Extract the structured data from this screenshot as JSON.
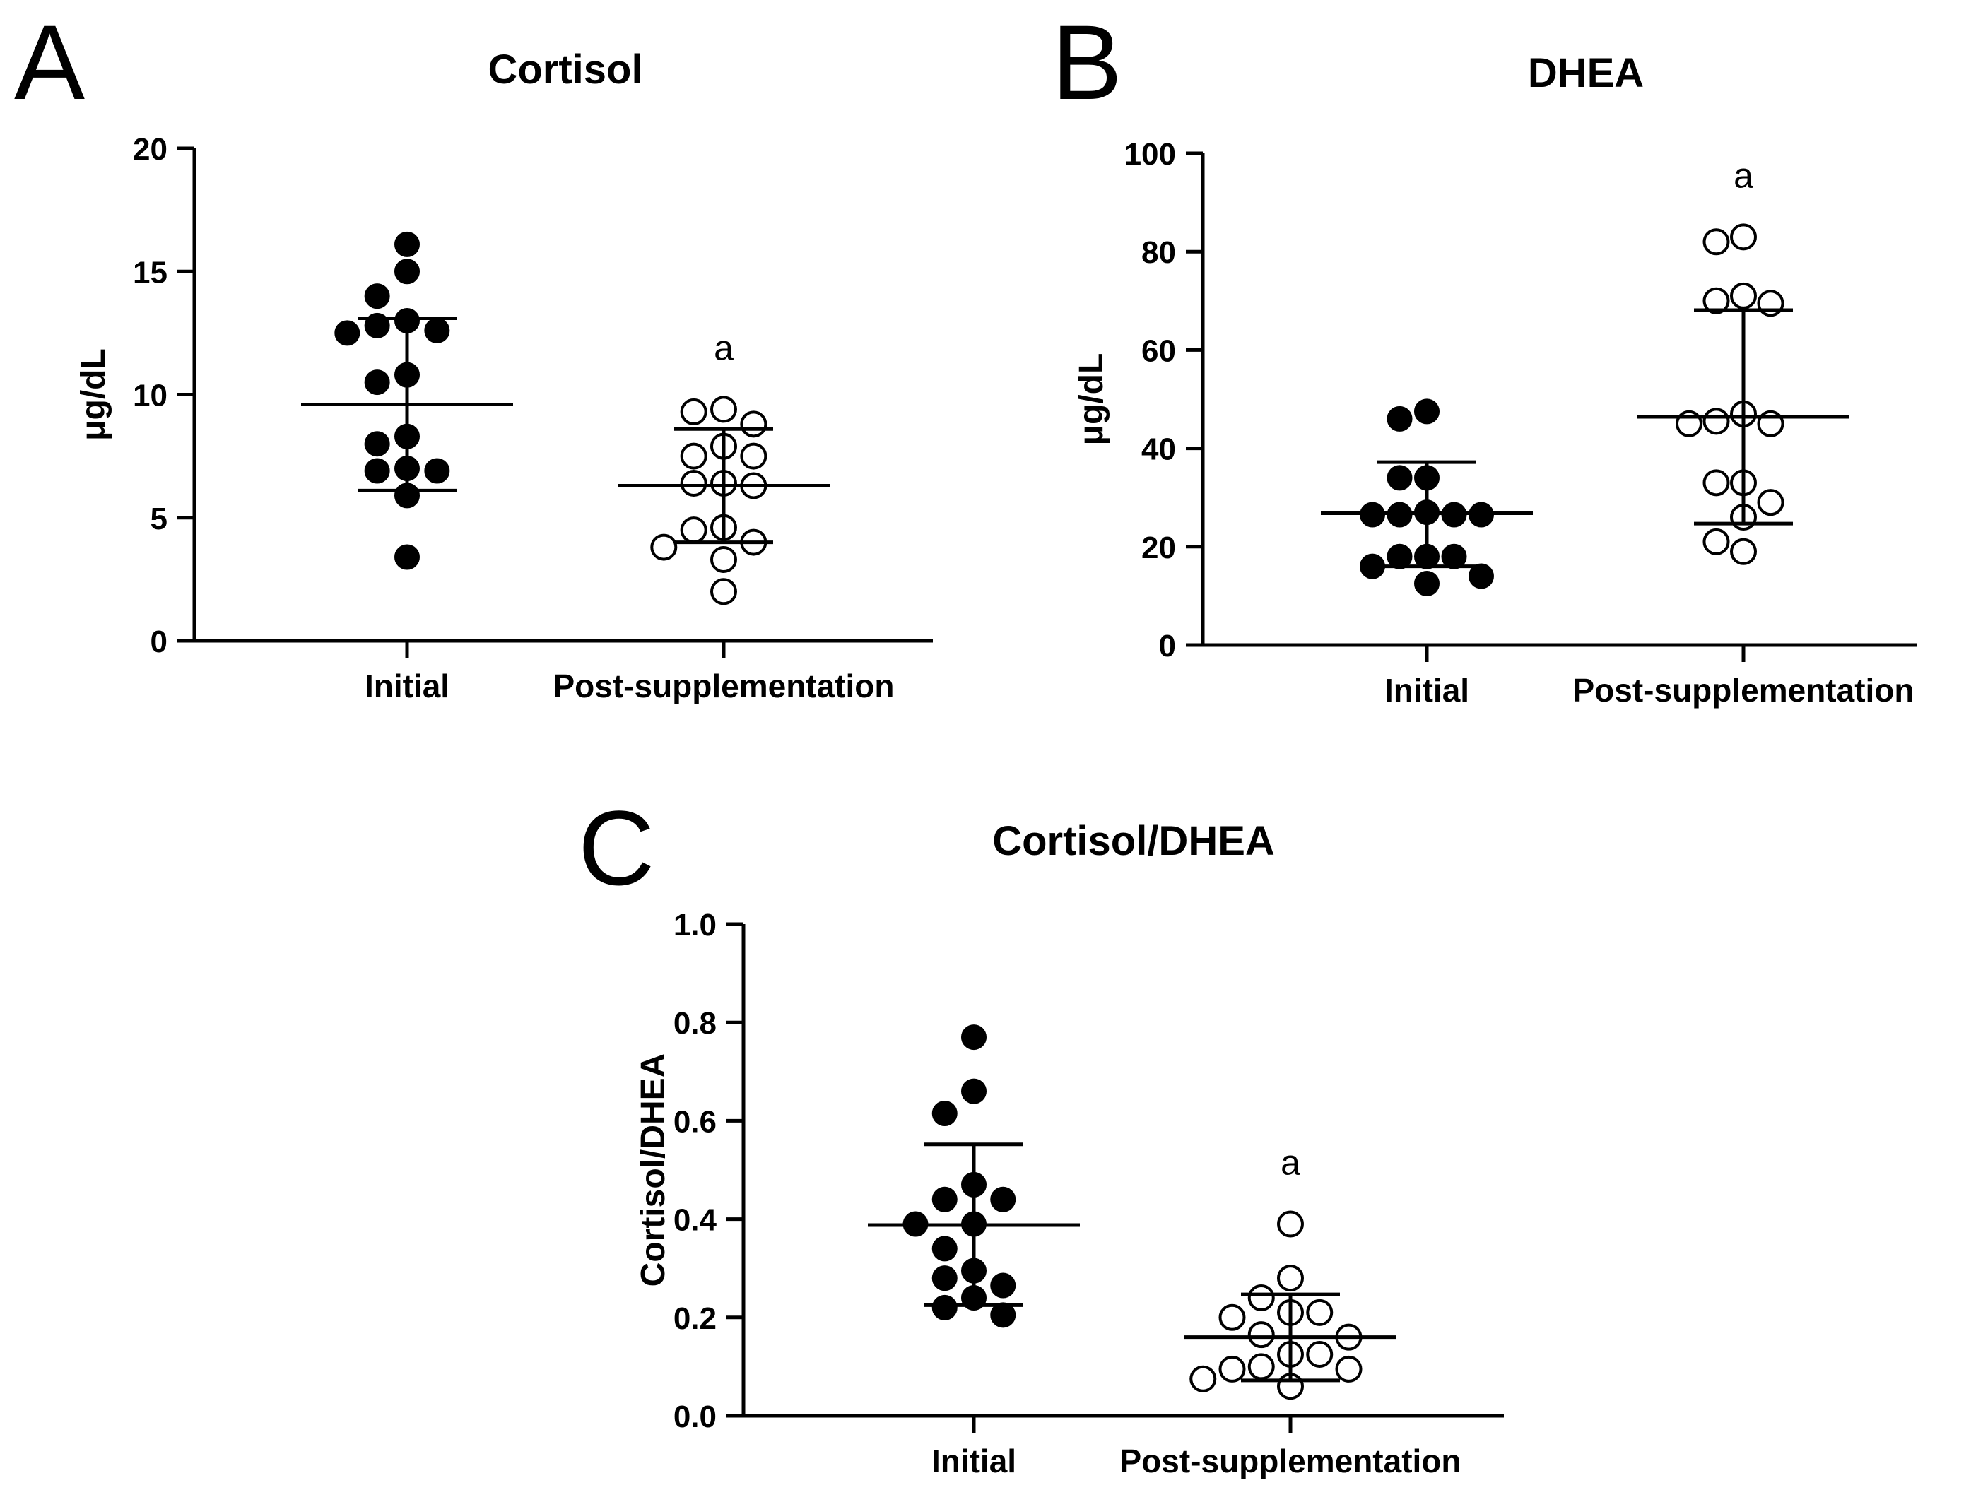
{
  "chart_data": [
    {
      "panel": "A",
      "type": "scatter",
      "title": "Cortisol",
      "ylabel": "μg/dL",
      "ylim": [
        0,
        20
      ],
      "yticks": [
        0,
        5,
        10,
        15,
        20
      ],
      "categories": [
        "Initial",
        "Post-supplementation"
      ],
      "groups": [
        {
          "category": "Initial",
          "marker": "filled",
          "points": [
            16.1,
            15.0,
            14.0,
            13.0,
            12.8,
            12.6,
            12.5,
            10.8,
            10.5,
            8.3,
            8.0,
            7.0,
            6.9,
            6.9,
            5.9,
            3.4
          ],
          "mean": 9.6,
          "sd_low": 6.1,
          "sd_high": 13.1
        },
        {
          "category": "Post-supplementation",
          "marker": "open",
          "points": [
            9.4,
            9.3,
            8.8,
            7.9,
            7.5,
            7.5,
            6.4,
            6.4,
            6.3,
            4.6,
            4.5,
            4.0,
            3.8,
            3.3,
            2.0
          ],
          "mean": 6.3,
          "sd_low": 4.0,
          "sd_high": 8.6,
          "annotation": "a"
        }
      ]
    },
    {
      "panel": "B",
      "type": "scatter",
      "title": "DHEA",
      "ylabel": "μg/dL",
      "ylim": [
        0,
        100
      ],
      "yticks": [
        0,
        20,
        40,
        60,
        80,
        100
      ],
      "categories": [
        "Initial",
        "Post-supplementation"
      ],
      "groups": [
        {
          "category": "Initial",
          "marker": "filled",
          "points": [
            47.5,
            46.0,
            34.0,
            34.0,
            27.0,
            26.5,
            26.5,
            26.5,
            26.5,
            18.0,
            18.0,
            18.0,
            16.0,
            14.0,
            12.5
          ],
          "mean": 26.8,
          "sd_low": 16.0,
          "sd_high": 37.2
        },
        {
          "category": "Post-supplementation",
          "marker": "open",
          "points": [
            83.0,
            82.0,
            71.0,
            70.0,
            69.5,
            47.0,
            45.5,
            45.0,
            45.0,
            33.0,
            33.0,
            29.0,
            26.0,
            21.0,
            19.0
          ],
          "mean": 46.4,
          "sd_low": 24.7,
          "sd_high": 68.1,
          "annotation": "a"
        }
      ]
    },
    {
      "panel": "C",
      "type": "scatter",
      "title": "Cortisol/DHEA",
      "ylabel": "Cortisol/DHEA",
      "ylim": [
        0,
        1.0
      ],
      "yticks": [
        0.0,
        0.2,
        0.4,
        0.6,
        0.8,
        1.0
      ],
      "categories": [
        "Initial",
        "Post-supplementation"
      ],
      "groups": [
        {
          "category": "Initial",
          "marker": "filled",
          "points": [
            0.77,
            0.66,
            0.615,
            0.47,
            0.44,
            0.44,
            0.39,
            0.39,
            0.34,
            0.295,
            0.28,
            0.265,
            0.24,
            0.22,
            0.205
          ],
          "mean": 0.388,
          "sd_low": 0.225,
          "sd_high": 0.552
        },
        {
          "category": "Post-supplementation",
          "marker": "open",
          "points": [
            0.39,
            0.28,
            0.24,
            0.21,
            0.21,
            0.2,
            0.165,
            0.16,
            0.125,
            0.125,
            0.1,
            0.095,
            0.095,
            0.075,
            0.06
          ],
          "mean": 0.16,
          "sd_low": 0.072,
          "sd_high": 0.247,
          "annotation": "a"
        }
      ]
    }
  ]
}
